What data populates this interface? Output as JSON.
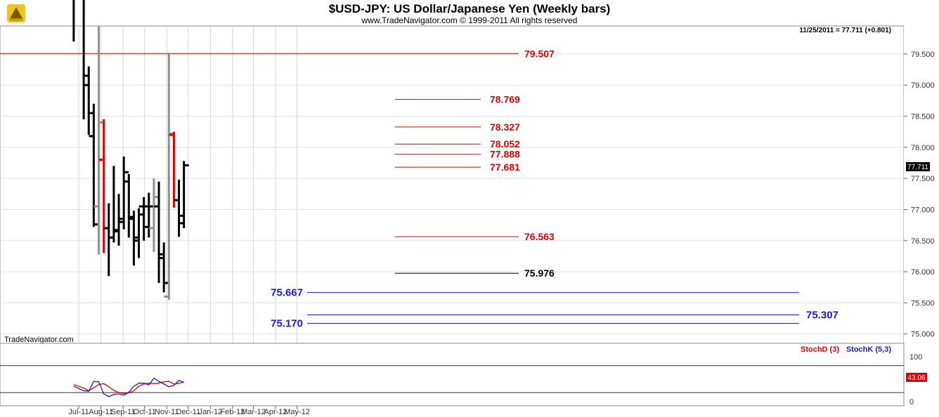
{
  "header": {
    "title": "$USD-JPY:  US Dollar/Japanese Yen  (Weekly bars)",
    "subtitle": "www.TradeNavigator.com © 1999-2011 All rights reserved",
    "last_info": "11/25/2011 = 77.711 (+0.801)",
    "watermark": "TradeNavigator.com",
    "last_price_tag": "77.711"
  },
  "colors": {
    "up_bar": "#000000",
    "red_bar": "#e00000",
    "gray_bar": "#909090",
    "red_level": "#e00000",
    "blue_level": "#1a1ad0",
    "stoch_d": "#e00000",
    "stoch_k": "#1a1ad0"
  },
  "chart_data": {
    "type": "ohlc",
    "price_axis": {
      "ticks": [
        "79.500",
        "79.000",
        "78.500",
        "78.000",
        "77.500",
        "77.000",
        "76.500",
        "76.000",
        "75.500",
        "75.000"
      ],
      "ylim": [
        74.85,
        79.95
      ]
    },
    "x_axis": {
      "labels": [
        "Jul-11",
        "Aug-11",
        "Sep-11",
        "Oct-11",
        "Nov-11",
        "Dec-11",
        "Jan-12",
        "Feb-12",
        "Mar-12",
        "Apr-12",
        "May-12"
      ]
    },
    "bars": [
      {
        "date": "2011-06-24",
        "open": 80.6,
        "high": 80.9,
        "low": 79.7,
        "close": 80.45,
        "color": "black"
      },
      {
        "date": "2011-07-08",
        "open": 81.0,
        "high": 81.1,
        "low": 78.45,
        "close": 79.15,
        "color": "black"
      },
      {
        "date": "2011-07-15",
        "open": 79.0,
        "high": 79.3,
        "low": 78.2,
        "close": 78.55,
        "color": "black"
      },
      {
        "date": "2011-07-22",
        "open": 78.18,
        "high": 78.7,
        "low": 76.72,
        "close": 76.76,
        "color": "black"
      },
      {
        "date": "2011-07-29",
        "open": 77.05,
        "high": 79.95,
        "low": 76.28,
        "close": 78.4,
        "color": "gray"
      },
      {
        "date": "2011-08-05",
        "open": 77.8,
        "high": 78.45,
        "low": 76.3,
        "close": 76.7,
        "color": "red"
      },
      {
        "date": "2011-08-12",
        "open": 76.7,
        "high": 77.1,
        "low": 75.93,
        "close": 76.55,
        "color": "black"
      },
      {
        "date": "2011-08-19",
        "open": 76.55,
        "high": 77.7,
        "low": 76.47,
        "close": 76.65,
        "color": "black"
      },
      {
        "date": "2011-08-26",
        "open": 76.67,
        "high": 77.25,
        "low": 76.42,
        "close": 76.8,
        "color": "black"
      },
      {
        "date": "2011-09-02",
        "open": 76.85,
        "high": 77.85,
        "low": 76.68,
        "close": 77.6,
        "color": "black"
      },
      {
        "date": "2011-09-09",
        "open": 77.45,
        "high": 77.57,
        "low": 76.55,
        "close": 76.85,
        "color": "black"
      },
      {
        "date": "2011-09-16",
        "open": 76.88,
        "high": 76.98,
        "low": 76.1,
        "close": 76.55,
        "color": "black"
      },
      {
        "date": "2011-09-23",
        "open": 76.5,
        "high": 77.02,
        "low": 76.22,
        "close": 76.92,
        "color": "black"
      },
      {
        "date": "2011-09-30",
        "open": 77.05,
        "high": 77.2,
        "low": 76.5,
        "close": 76.72,
        "color": "black"
      },
      {
        "date": "2011-10-07",
        "open": 77.05,
        "high": 77.27,
        "low": 76.55,
        "close": 77.05,
        "color": "black"
      },
      {
        "date": "2011-10-14",
        "open": 76.7,
        "high": 77.5,
        "low": 76.32,
        "close": 77.2,
        "color": "gray"
      },
      {
        "date": "2011-10-21",
        "open": 77.05,
        "high": 77.45,
        "low": 75.82,
        "close": 76.28,
        "color": "black"
      },
      {
        "date": "2011-10-28",
        "open": 76.22,
        "high": 76.47,
        "low": 75.67,
        "close": 75.82,
        "color": "black"
      },
      {
        "date": "2011-11-04",
        "open": 75.6,
        "high": 79.52,
        "low": 75.55,
        "close": 78.22,
        "color": "gray"
      },
      {
        "date": "2011-11-11",
        "open": 78.2,
        "high": 78.25,
        "low": 77.03,
        "close": 77.15,
        "color": "red"
      },
      {
        "date": "2011-11-18",
        "open": 77.15,
        "high": 77.48,
        "low": 76.56,
        "close": 76.9,
        "color": "black"
      },
      {
        "date": "2011-11-25",
        "open": 76.78,
        "high": 77.78,
        "low": 76.7,
        "close": 77.71,
        "color": "black"
      }
    ],
    "levels": [
      {
        "label": "79.507",
        "value": 79.507,
        "color": "red"
      },
      {
        "label": "78.769",
        "value": 78.769,
        "color": "red"
      },
      {
        "label": "78.327",
        "value": 78.327,
        "color": "red"
      },
      {
        "label": "78.052",
        "value": 78.052,
        "color": "red"
      },
      {
        "label": "77.888",
        "value": 77.888,
        "color": "red"
      },
      {
        "label": "77.681",
        "value": 77.681,
        "color": "red"
      },
      {
        "label": "76.563",
        "value": 76.563,
        "color": "red"
      },
      {
        "label": "75.976",
        "value": 75.976,
        "color": "black"
      },
      {
        "label": "75.667",
        "value": 75.667,
        "color": "blue"
      },
      {
        "label": "75.307",
        "value": 75.307,
        "color": "blue"
      },
      {
        "label": "75.170",
        "value": 75.17,
        "color": "blue"
      }
    ],
    "indicator": {
      "legend_d": "StochD (3)",
      "legend_k": "StochK (5,3)",
      "ticks": [
        "100",
        "50",
        "0"
      ],
      "ylim": [
        0,
        100
      ],
      "reference_lines": [
        80,
        20
      ],
      "last_value_tag": "43.06",
      "stoch_d": [
        38,
        30,
        24,
        31,
        38,
        40,
        33,
        25,
        20,
        18,
        19,
        24,
        34,
        39,
        41,
        40,
        41,
        44,
        45,
        39,
        41,
        43
      ],
      "stoch_k": [
        34,
        24,
        23,
        45,
        44,
        17,
        11,
        16,
        17,
        14,
        21,
        34,
        41,
        41,
        37,
        52,
        45,
        39,
        33,
        36,
        47,
        43
      ]
    }
  }
}
